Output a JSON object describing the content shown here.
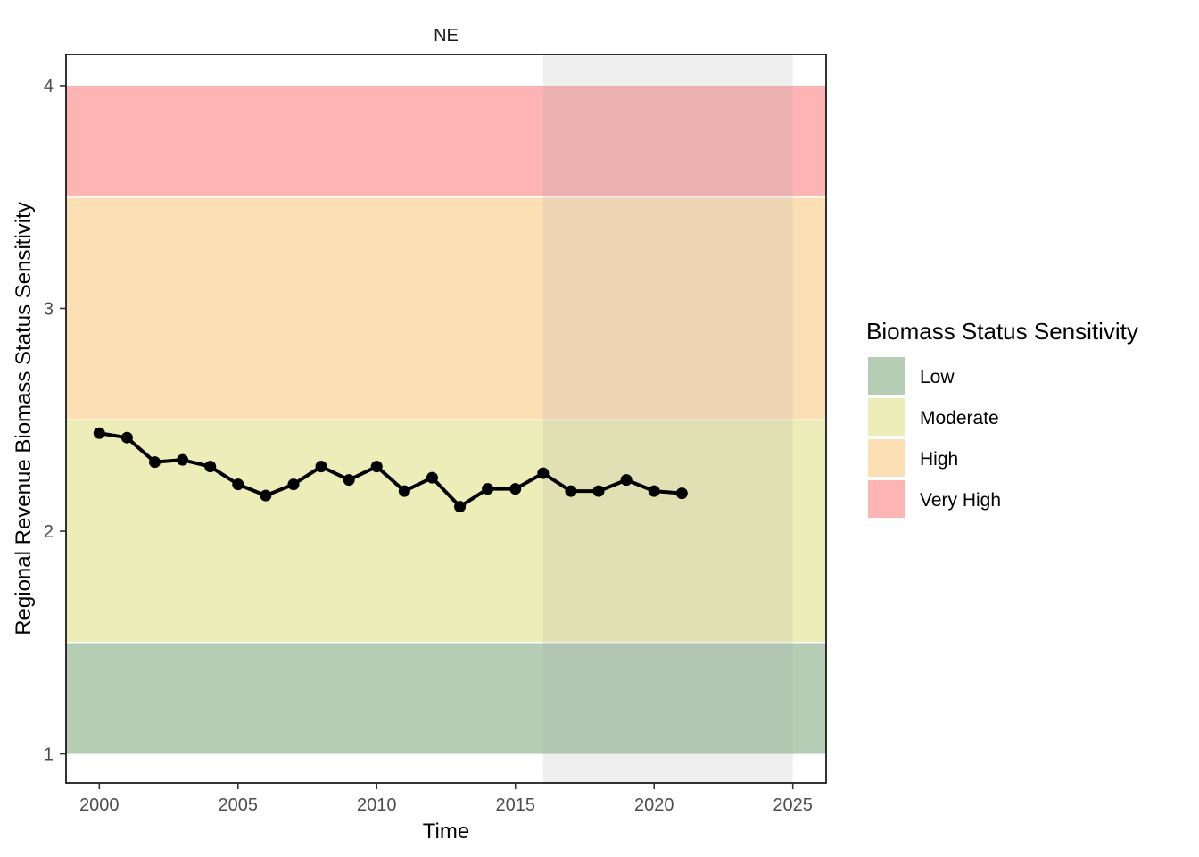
{
  "chart_data": {
    "type": "line",
    "facet": "NE",
    "xlabel": "Time",
    "ylabel": "Regional Revenue Biomass Status Sensitivity",
    "xlim": [
      1998.8,
      2026.2
    ],
    "ylim": [
      0.87,
      4.14
    ],
    "x_ticks": [
      2000,
      2005,
      2010,
      2015,
      2020,
      2025
    ],
    "y_ticks": [
      1,
      2,
      3,
      4
    ],
    "grid": false,
    "projection_shade": {
      "x_start": 2016,
      "x_end": 2025,
      "color": "#9e9e9e"
    },
    "bands": [
      {
        "label": "Low",
        "y_min": 1.0,
        "y_max": 1.5,
        "color": "#b5cdb4"
      },
      {
        "label": "Moderate",
        "y_min": 1.5,
        "y_max": 2.5,
        "color": "#ededb9"
      },
      {
        "label": "High",
        "y_min": 2.5,
        "y_max": 3.5,
        "color": "#fddfb6"
      },
      {
        "label": "Very High",
        "y_min": 3.5,
        "y_max": 4.0,
        "color": "#fdb4b5"
      }
    ],
    "legend": {
      "title": "Biomass Status Sensitivity",
      "position": "right"
    },
    "series": [
      {
        "color": "#000000",
        "x": [
          2000,
          2001,
          2002,
          2003,
          2004,
          2005,
          2006,
          2007,
          2008,
          2009,
          2010,
          2011,
          2012,
          2013,
          2014,
          2015,
          2016,
          2017,
          2018,
          2019,
          2020,
          2021
        ],
        "y": [
          2.44,
          2.42,
          2.31,
          2.32,
          2.29,
          2.21,
          2.16,
          2.21,
          2.29,
          2.23,
          2.29,
          2.18,
          2.24,
          2.11,
          2.19,
          2.19,
          2.26,
          2.18,
          2.18,
          2.23,
          2.18,
          2.17
        ]
      }
    ]
  }
}
